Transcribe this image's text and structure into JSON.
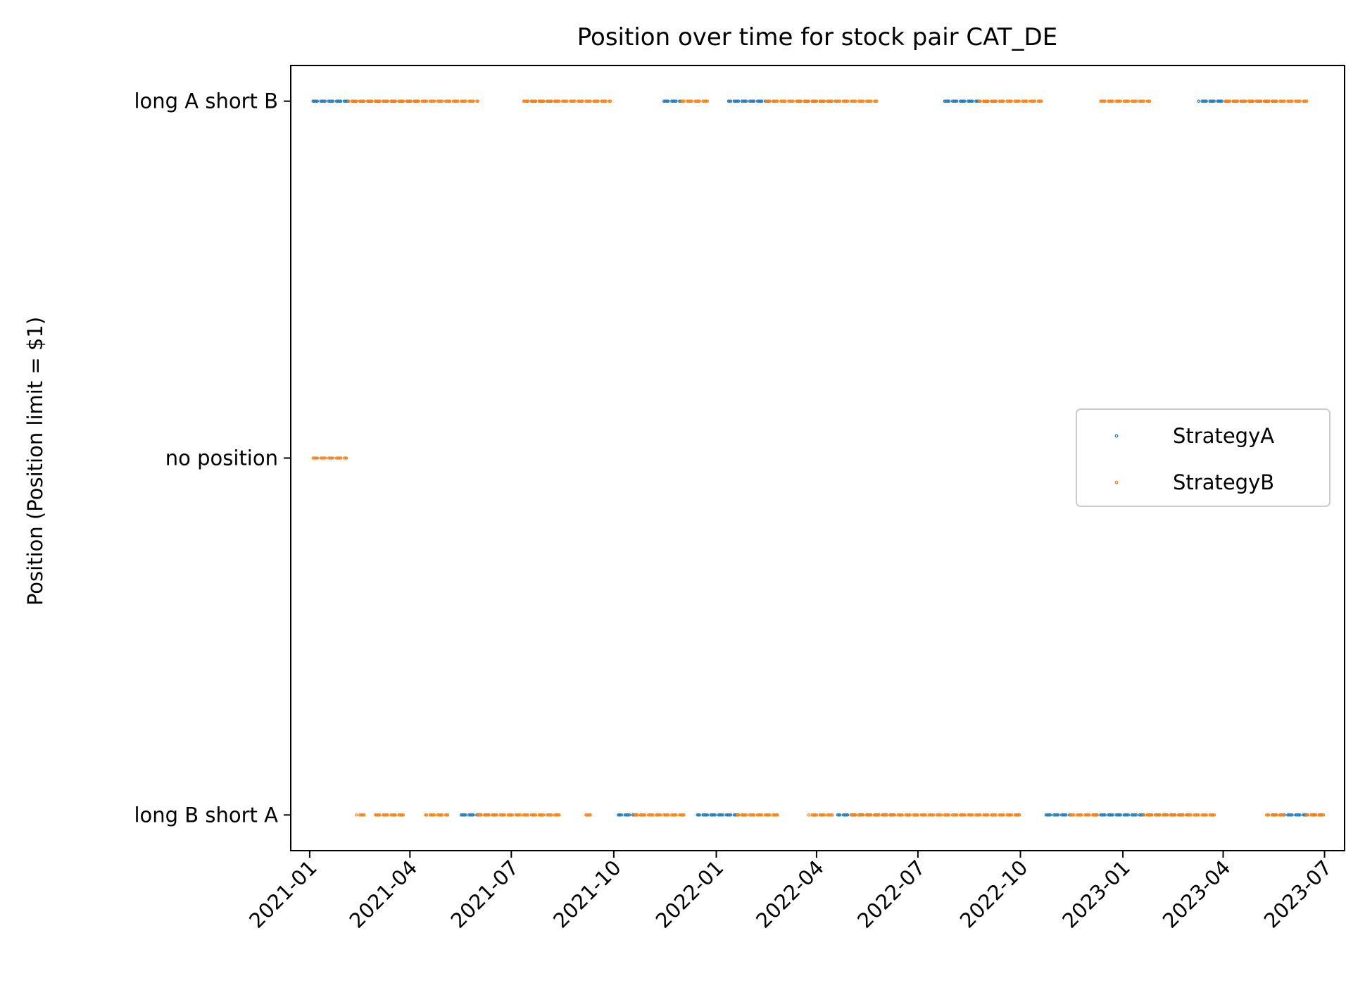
{
  "chart_data": {
    "type": "scatter",
    "title": "Position over time for stock pair CAT_DE",
    "xlabel": "",
    "ylabel": "Position (Position limit = $1)",
    "x_tick_labels": [
      "2021-01",
      "2021-04",
      "2021-07",
      "2021-10",
      "2022-01",
      "2022-04",
      "2022-07",
      "2022-10",
      "2023-01",
      "2023-04",
      "2023-07"
    ],
    "xlim": [
      "2020-12-15",
      "2023-07-19"
    ],
    "y_categories": [
      "long B short A",
      "no position",
      "long A short B"
    ],
    "y_values_numeric": [
      -1,
      0,
      1
    ],
    "ylim": [
      -1.1,
      1.1
    ],
    "grid": false,
    "legend_position": "center-right",
    "series": [
      {
        "name": "StrategyA",
        "color": "#1f77b4",
        "marker": "small-dot",
        "segments": [
          {
            "y": 1,
            "start": "2021-01-04",
            "end": "2021-04-08"
          },
          {
            "y": 1,
            "start": "2021-07-15",
            "end": "2021-08-10"
          },
          {
            "y": 1,
            "start": "2021-11-15",
            "end": "2021-12-01"
          },
          {
            "y": 1,
            "start": "2022-01-12",
            "end": "2022-02-22"
          },
          {
            "y": 1,
            "start": "2022-03-15",
            "end": "2022-04-18"
          },
          {
            "y": 1,
            "start": "2022-07-25",
            "end": "2022-09-10"
          },
          {
            "y": 1,
            "start": "2023-03-10",
            "end": "2023-05-20"
          },
          {
            "y": -1,
            "start": "2021-05-15",
            "end": "2021-06-15"
          },
          {
            "y": -1,
            "start": "2021-10-05",
            "end": "2021-10-25"
          },
          {
            "y": -1,
            "start": "2021-12-15",
            "end": "2022-01-25"
          },
          {
            "y": -1,
            "start": "2022-04-20",
            "end": "2022-06-10"
          },
          {
            "y": -1,
            "start": "2022-10-22",
            "end": "2022-11-15"
          },
          {
            "y": -1,
            "start": "2022-12-05",
            "end": "2023-03-01"
          },
          {
            "y": -1,
            "start": "2023-05-15",
            "end": "2023-06-28"
          }
        ]
      },
      {
        "name": "StrategyB",
        "color": "#ff7f0e",
        "marker": "small-dot",
        "segments": [
          {
            "y": 0,
            "start": "2021-01-02",
            "end": "2021-02-03"
          },
          {
            "y": 1,
            "start": "2021-02-05",
            "end": "2021-06-01"
          },
          {
            "y": 1,
            "start": "2021-07-12",
            "end": "2021-09-28"
          },
          {
            "y": 1,
            "start": "2021-12-01",
            "end": "2021-12-25"
          },
          {
            "y": 1,
            "start": "2022-02-15",
            "end": "2022-05-25"
          },
          {
            "y": 1,
            "start": "2022-08-25",
            "end": "2022-10-20"
          },
          {
            "y": 1,
            "start": "2022-12-12",
            "end": "2023-01-25"
          },
          {
            "y": 1,
            "start": "2023-04-01",
            "end": "2023-06-15"
          },
          {
            "y": -1,
            "start": "2021-02-12",
            "end": "2021-02-20"
          },
          {
            "y": -1,
            "start": "2021-03-01",
            "end": "2021-03-28"
          },
          {
            "y": -1,
            "start": "2021-04-15",
            "end": "2021-05-05"
          },
          {
            "y": -1,
            "start": "2021-06-01",
            "end": "2021-08-15"
          },
          {
            "y": -1,
            "start": "2021-09-05",
            "end": "2021-09-12"
          },
          {
            "y": -1,
            "start": "2021-10-20",
            "end": "2021-12-05"
          },
          {
            "y": -1,
            "start": "2022-01-20",
            "end": "2022-02-25"
          },
          {
            "y": -1,
            "start": "2022-03-25",
            "end": "2022-04-15"
          },
          {
            "y": -1,
            "start": "2022-05-01",
            "end": "2022-09-30"
          },
          {
            "y": -1,
            "start": "2022-09-28",
            "end": "2022-10-02"
          },
          {
            "y": -1,
            "start": "2022-11-15",
            "end": "2022-12-10"
          },
          {
            "y": -1,
            "start": "2023-01-20",
            "end": "2023-03-25"
          },
          {
            "y": -1,
            "start": "2023-05-10",
            "end": "2023-05-25"
          },
          {
            "y": -1,
            "start": "2023-06-15",
            "end": "2023-07-01"
          }
        ]
      }
    ]
  }
}
